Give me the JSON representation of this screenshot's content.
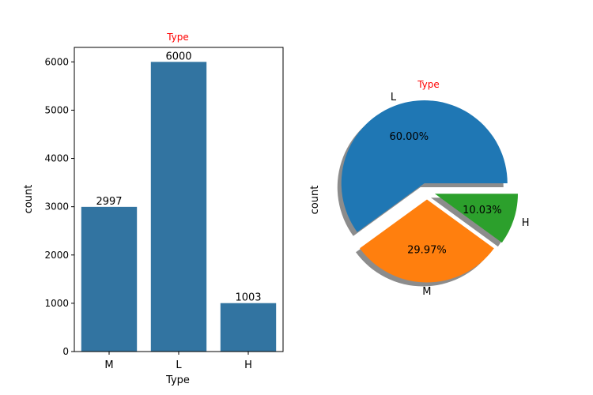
{
  "chart_data": [
    {
      "type": "bar",
      "title": "Type",
      "title_color": "#ff0000",
      "xlabel": "Type",
      "ylabel": "count",
      "categories": [
        "M",
        "L",
        "H"
      ],
      "values": [
        2997,
        6000,
        1003
      ],
      "data_labels": [
        "2997",
        "6000",
        "1003"
      ],
      "ylim": [
        0,
        6300
      ],
      "yticks": [
        0,
        1000,
        2000,
        3000,
        4000,
        5000,
        6000
      ],
      "bar_color": "#3274a1",
      "grid": false
    },
    {
      "type": "pie",
      "title": "Type",
      "title_color": "#ff0000",
      "ylabel": "count",
      "labels": [
        "L",
        "M",
        "H"
      ],
      "values": [
        6000,
        2997,
        1003
      ],
      "percent_labels": [
        "60.00%",
        "29.97%",
        "10.03%"
      ],
      "explode": [
        0.1,
        0.1,
        0.1
      ],
      "colors": [
        "#1f77b4",
        "#ff7f0e",
        "#2ca02c"
      ],
      "shadow": true,
      "start_angle_deg": 0
    }
  ]
}
